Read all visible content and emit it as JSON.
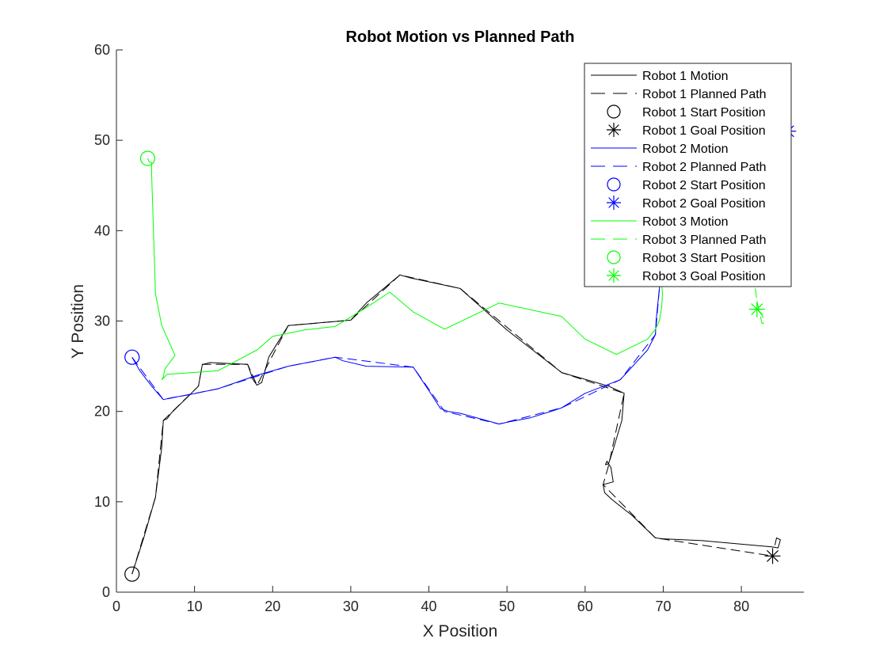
{
  "chart_data": {
    "type": "line",
    "title": "Robot Motion vs Planned Path",
    "xlabel": "X Position",
    "ylabel": "Y Position",
    "xlim": [
      0,
      88
    ],
    "ylim": [
      0,
      60
    ],
    "xticks": [
      0,
      10,
      20,
      30,
      40,
      50,
      60,
      70,
      80
    ],
    "yticks": [
      0,
      10,
      20,
      30,
      40,
      50,
      60
    ],
    "grid": false,
    "legend_position": "top-right",
    "colors": {
      "robot1": "#000000",
      "robot2": "#0000ff",
      "robot3": "#00ff00"
    },
    "legend": [
      {
        "label": "Robot 1 Motion",
        "color": "#000000",
        "kind": "solid"
      },
      {
        "label": "Robot 1 Planned Path",
        "color": "#000000",
        "kind": "dashed"
      },
      {
        "label": "Robot 1 Start Position",
        "color": "#000000",
        "kind": "circle"
      },
      {
        "label": "Robot 1 Goal Position",
        "color": "#000000",
        "kind": "star"
      },
      {
        "label": "Robot 2 Motion",
        "color": "#0000ff",
        "kind": "solid"
      },
      {
        "label": "Robot 2 Planned Path",
        "color": "#0000ff",
        "kind": "dashed"
      },
      {
        "label": "Robot 2 Start Position",
        "color": "#0000ff",
        "kind": "circle"
      },
      {
        "label": "Robot 2 Goal Position",
        "color": "#0000ff",
        "kind": "star"
      },
      {
        "label": "Robot 3 Motion",
        "color": "#00ff00",
        "kind": "solid"
      },
      {
        "label": "Robot 3 Planned Path",
        "color": "#00ff00",
        "kind": "dashed"
      },
      {
        "label": "Robot 3 Start Position",
        "color": "#00ff00",
        "kind": "circle"
      },
      {
        "label": "Robot 3 Goal Position",
        "color": "#00ff00",
        "kind": "star"
      }
    ],
    "series": [
      {
        "name": "Robot 1 Motion",
        "color": "#000000",
        "style": "solid",
        "points": [
          [
            2,
            2
          ],
          [
            3.5,
            6
          ],
          [
            5,
            10.5
          ],
          [
            5.8,
            16
          ],
          [
            6,
            19
          ],
          [
            6.5,
            19.2
          ],
          [
            7,
            19.8
          ],
          [
            9,
            21.5
          ],
          [
            10.5,
            22.8
          ],
          [
            11,
            25.2
          ],
          [
            12,
            25.4
          ],
          [
            16.8,
            25.2
          ],
          [
            17.5,
            23.5
          ],
          [
            18,
            22.9
          ],
          [
            18.6,
            23.2
          ],
          [
            19.5,
            26
          ],
          [
            22,
            29.5
          ],
          [
            30,
            30.1
          ],
          [
            32,
            32
          ],
          [
            36.3,
            35.1
          ],
          [
            37.5,
            34.8
          ],
          [
            44,
            33.6
          ],
          [
            50,
            29
          ],
          [
            57,
            24.3
          ],
          [
            63,
            22.8
          ],
          [
            65,
            22
          ],
          [
            64.7,
            19
          ],
          [
            63.5,
            15.5
          ],
          [
            63,
            14.2
          ],
          [
            62.6,
            14.1
          ],
          [
            62.8,
            14.5
          ],
          [
            63.3,
            13.8
          ],
          [
            63.6,
            12.2
          ],
          [
            62.3,
            11.9
          ],
          [
            62.5,
            11
          ],
          [
            63.5,
            10.2
          ],
          [
            66,
            8.5
          ],
          [
            69,
            6
          ],
          [
            70,
            5.9
          ],
          [
            75,
            5.7
          ],
          [
            84,
            5
          ],
          [
            84.7,
            4.9
          ],
          [
            85,
            5.8
          ],
          [
            84.5,
            6
          ],
          [
            84.3,
            5.2
          ]
        ]
      },
      {
        "name": "Robot 1 Planned Path",
        "color": "#000000",
        "style": "dashed",
        "points": [
          [
            2,
            2
          ],
          [
            5,
            10.5
          ],
          [
            6,
            19
          ],
          [
            10.5,
            22.8
          ],
          [
            11,
            25.2
          ],
          [
            16.8,
            25.2
          ],
          [
            18,
            22.9
          ],
          [
            22,
            29.5
          ],
          [
            30,
            30.1
          ],
          [
            36.3,
            35.1
          ],
          [
            44,
            33.6
          ],
          [
            57,
            24.3
          ],
          [
            65,
            22
          ],
          [
            63,
            14
          ],
          [
            62.3,
            11.9
          ],
          [
            69,
            6
          ],
          [
            84,
            4
          ]
        ]
      },
      {
        "name": "Robot 2 Motion",
        "color": "#0000ff",
        "style": "solid",
        "points": [
          [
            2,
            26
          ],
          [
            3,
            24.5
          ],
          [
            4.5,
            22.8
          ],
          [
            6,
            21.3
          ],
          [
            7,
            21.5
          ],
          [
            9,
            21.8
          ],
          [
            13,
            22.5
          ],
          [
            18,
            24
          ],
          [
            22,
            25
          ],
          [
            28,
            26
          ],
          [
            29,
            25.6
          ],
          [
            32,
            25
          ],
          [
            38,
            24.9
          ],
          [
            40,
            22.3
          ],
          [
            41.5,
            20.3
          ],
          [
            42.5,
            20
          ],
          [
            44,
            19.8
          ],
          [
            49,
            18.6
          ],
          [
            50,
            18.8
          ],
          [
            53,
            19.3
          ],
          [
            56,
            20.1
          ],
          [
            57,
            20.4
          ],
          [
            60,
            22
          ],
          [
            64.5,
            23.5
          ],
          [
            68,
            26.8
          ],
          [
            69,
            28.5
          ],
          [
            69.1,
            30.2
          ],
          [
            69.5,
            33.5
          ],
          [
            69.8,
            36.5
          ]
        ]
      },
      {
        "name": "Robot 2 Planned Path",
        "color": "#0000ff",
        "style": "dashed",
        "points": [
          [
            2,
            26
          ],
          [
            6,
            21.3
          ],
          [
            13,
            22.5
          ],
          [
            22,
            25
          ],
          [
            28,
            26
          ],
          [
            38,
            24.9
          ],
          [
            42,
            20
          ],
          [
            49,
            18.6
          ],
          [
            57,
            20.4
          ],
          [
            64.5,
            23.5
          ],
          [
            69,
            28.5
          ],
          [
            69.8,
            36.5
          ]
        ]
      },
      {
        "name": "Robot 3 Motion",
        "color": "#00ff00",
        "style": "solid",
        "points": [
          [
            4,
            48
          ],
          [
            4.2,
            47.6
          ],
          [
            4.5,
            47.5
          ],
          [
            4.5,
            46.5
          ],
          [
            5,
            33
          ],
          [
            5.8,
            29.5
          ],
          [
            7.5,
            26.2
          ],
          [
            6.2,
            24.7
          ],
          [
            6,
            23.8
          ],
          [
            5.8,
            23.5
          ],
          [
            6.5,
            24.1
          ],
          [
            13,
            24.5
          ],
          [
            18,
            26.8
          ],
          [
            20,
            28.3
          ],
          [
            24,
            29
          ],
          [
            28,
            29.4
          ],
          [
            32,
            31.5
          ],
          [
            35,
            33.2
          ],
          [
            38,
            31
          ],
          [
            42,
            29.1
          ],
          [
            49,
            32
          ],
          [
            57,
            30.5
          ],
          [
            60,
            28
          ],
          [
            64,
            26.3
          ],
          [
            68,
            28
          ],
          [
            69,
            29.1
          ],
          [
            69.5,
            30
          ],
          [
            69.8,
            31.5
          ],
          [
            69.9,
            33
          ],
          [
            69.7,
            35.2
          ]
        ]
      },
      {
        "name": "Robot 3 Planned Path",
        "color": "#00ff00",
        "style": "dashed",
        "points": [
          [
            81.8,
            33.6
          ],
          [
            82,
            32.2
          ],
          [
            82.3,
            31
          ],
          [
            82.5,
            30.3
          ],
          [
            82.6,
            29.8
          ],
          [
            82.8,
            29.7
          ],
          [
            82.9,
            30.1
          ],
          [
            82.7,
            30.6
          ],
          [
            82.3,
            31
          ]
        ]
      }
    ],
    "markers": [
      {
        "name": "Robot 1 Start Position",
        "color": "#000000",
        "kind": "circle",
        "x": 2,
        "y": 2
      },
      {
        "name": "Robot 1 Goal Position",
        "color": "#000000",
        "kind": "star",
        "x": 84,
        "y": 4
      },
      {
        "name": "Robot 2 Start Position",
        "color": "#0000ff",
        "kind": "circle",
        "x": 2,
        "y": 26
      },
      {
        "name": "Robot 2 Goal Position",
        "color": "#0000ff",
        "kind": "star",
        "x": 86,
        "y": 51
      },
      {
        "name": "Robot 3 Start Position",
        "color": "#00ff00",
        "kind": "circle",
        "x": 4,
        "y": 48
      },
      {
        "name": "Robot 3 Goal Position",
        "color": "#00ff00",
        "kind": "star",
        "x": 82,
        "y": 31.3
      }
    ]
  }
}
